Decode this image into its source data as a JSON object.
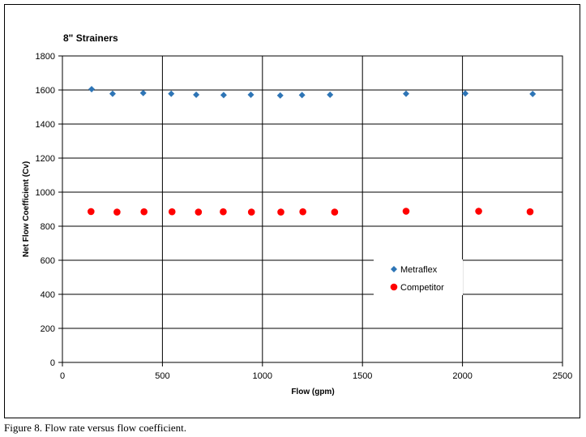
{
  "chart_data": {
    "type": "scatter",
    "title": "8\" Strainers",
    "xlabel": "Flow (gpm)",
    "ylabel": "Net Flow Coefficient (Cv)",
    "xlim": [
      0,
      2500
    ],
    "ylim": [
      0,
      1800
    ],
    "xticks": [
      0,
      500,
      1000,
      1500,
      2000,
      2500
    ],
    "yticks": [
      0,
      200,
      400,
      600,
      800,
      1000,
      1200,
      1400,
      1600,
      1800
    ],
    "grid": true,
    "legend_position": "lower-right",
    "series": [
      {
        "name": "Metraflex",
        "marker": "diamond",
        "color": "#2e75b6",
        "points": [
          [
            146,
            1605
          ],
          [
            251,
            1578
          ],
          [
            404,
            1582
          ],
          [
            544,
            1578
          ],
          [
            669,
            1572
          ],
          [
            806,
            1570
          ],
          [
            942,
            1572
          ],
          [
            1089,
            1568
          ],
          [
            1198,
            1570
          ],
          [
            1338,
            1572
          ],
          [
            1718,
            1578
          ],
          [
            2014,
            1580
          ],
          [
            2351,
            1577
          ]
        ]
      },
      {
        "name": "Competitor",
        "marker": "circle",
        "color": "#ff0000",
        "points": [
          [
            143,
            886
          ],
          [
            273,
            883
          ],
          [
            408,
            885
          ],
          [
            548,
            885
          ],
          [
            680,
            883
          ],
          [
            804,
            885
          ],
          [
            945,
            883
          ],
          [
            1092,
            883
          ],
          [
            1202,
            885
          ],
          [
            1361,
            883
          ],
          [
            1718,
            888
          ],
          [
            2081,
            888
          ],
          [
            2338,
            885
          ]
        ]
      }
    ]
  },
  "caption": "Figure 8.  Flow rate versus flow coefficient."
}
